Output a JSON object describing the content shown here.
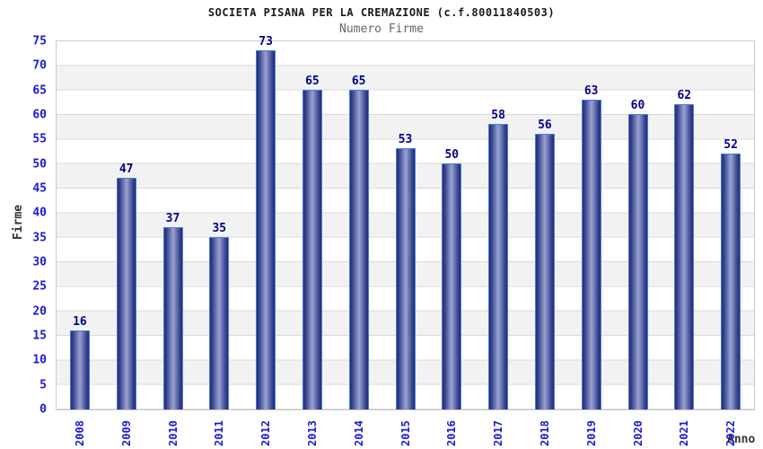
{
  "chart_data": {
    "type": "bar",
    "title": "SOCIETA PISANA PER LA CREMAZIONE (c.f.80011840503)",
    "subtitle": "Numero Firme",
    "xlabel": "Anno",
    "ylabel": "Firme",
    "categories": [
      "2008",
      "2009",
      "2010",
      "2011",
      "2012",
      "2013",
      "2014",
      "2015",
      "2016",
      "2017",
      "2018",
      "2019",
      "2020",
      "2021",
      "2022"
    ],
    "values": [
      16,
      47,
      37,
      35,
      73,
      65,
      65,
      53,
      50,
      58,
      56,
      63,
      60,
      62,
      52
    ],
    "ylim": [
      0,
      75
    ],
    "ytick_step": 5,
    "grid": "horizontal gridlines with alternating white/gray bands",
    "legend": "none",
    "value_labels": "above each bar",
    "colors": {
      "bar_border": "#4a7ddf",
      "bar_edge_dark": "#212c74",
      "bar_center_light": "#9aa3d2",
      "axis_tick_label": "#1a1ad0",
      "value_label": "#00008b",
      "grid_line": "#d9d9d9",
      "band_gray": "#f2f2f2",
      "plot_border": "#cccccc",
      "title": "#1a1a1a",
      "subtitle": "#666666",
      "axis_label": "#333333"
    }
  }
}
